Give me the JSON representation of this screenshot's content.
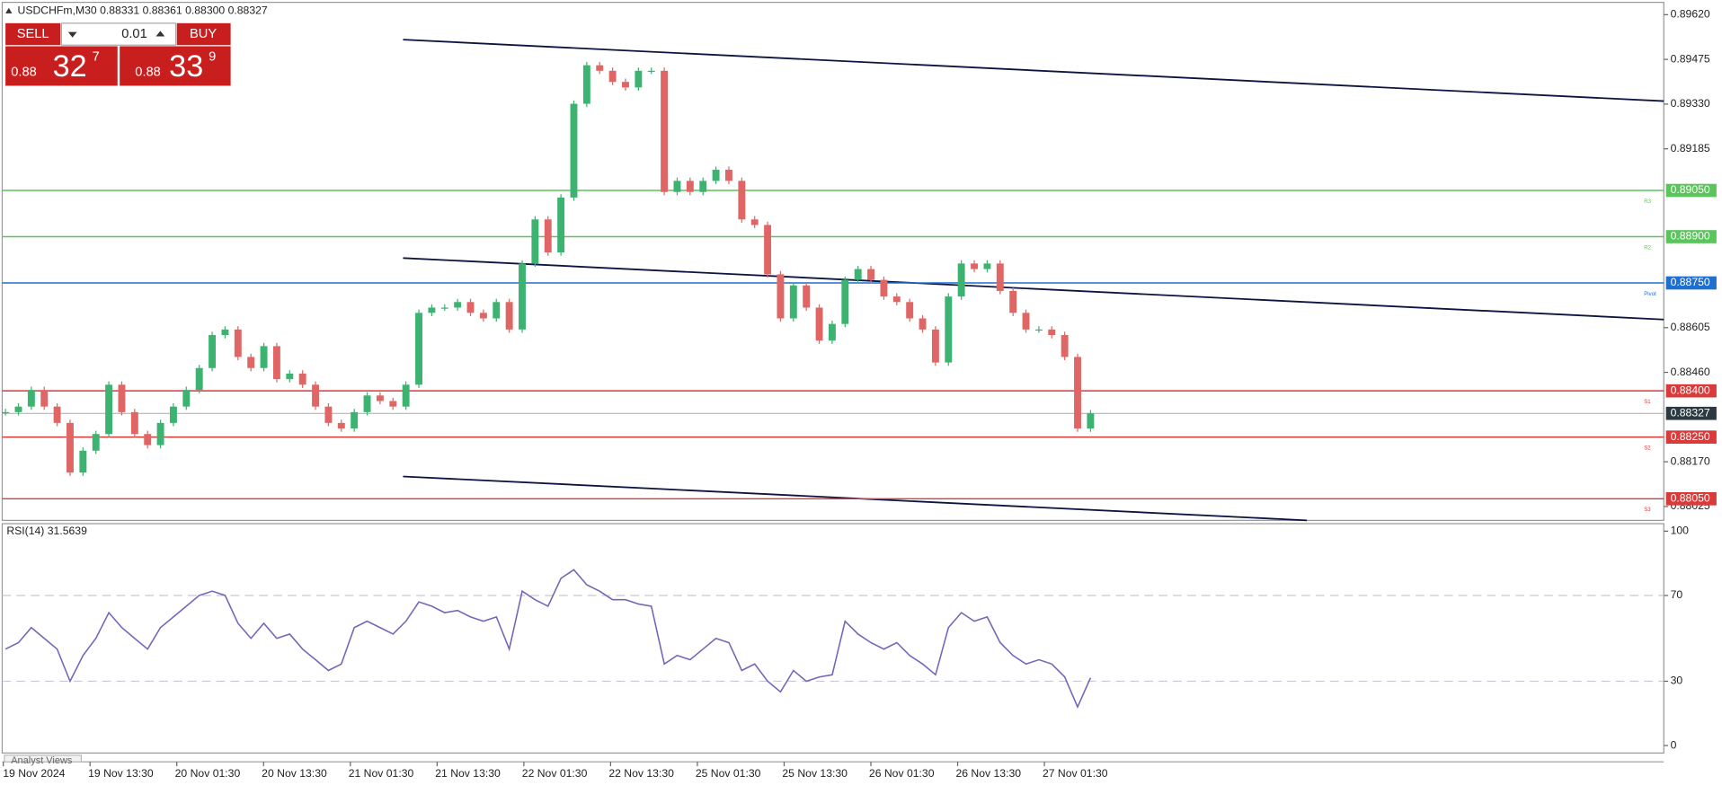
{
  "toolbar": {
    "symbol_line": "USDCHFm,M30  0.88331 0.88361 0.88300 0.88327",
    "sell": "SELL",
    "buy": "BUY",
    "lot": "0.01",
    "sell_price": {
      "big": "0.88",
      "pips": "32",
      "frac": "7"
    },
    "buy_price": {
      "big": "0.88",
      "pips": "33",
      "frac": "9"
    }
  },
  "chart_data": {
    "type": "candlestick",
    "close": [
      0.88331,
      0.88349,
      0.88403,
      0.88349,
      0.88296,
      0.88135,
      0.88206,
      0.8826,
      0.8842,
      0.88331,
      0.8826,
      0.88224,
      0.88296,
      0.88349,
      0.88403,
      0.88474,
      0.88581,
      0.88599,
      0.8851,
      0.88474,
      0.88545,
      0.88438,
      0.88456,
      0.8842,
      0.88349,
      0.88296,
      0.88278,
      0.88331,
      0.88385,
      0.88367,
      0.88349,
      0.8842,
      0.88653,
      0.8867,
      0.8867,
      0.88688,
      0.88653,
      0.88635,
      0.88688,
      0.88599,
      0.88813,
      0.88956,
      0.88849,
      0.89027,
      0.89331,
      0.89456,
      0.89438,
      0.89402,
      0.89384,
      0.89438,
      0.89438,
      0.89045,
      0.89081,
      0.89045,
      0.89081,
      0.89117,
      0.89081,
      0.88956,
      0.88938,
      0.88778,
      0.88635,
      0.88742,
      0.8867,
      0.88563,
      0.88617,
      0.8876,
      0.88795,
      0.8876,
      0.88706,
      0.88688,
      0.88635,
      0.88599,
      0.88492,
      0.88706,
      0.88813,
      0.88795,
      0.88813,
      0.88724,
      0.88653,
      0.88599,
      0.88599,
      0.88581,
      0.8851,
      0.88278,
      0.88327
    ],
    "up_color": "#3cb371",
    "down_color": "#e06666",
    "ylim": [
      0.8798,
      0.8966
    ],
    "yticks": [
      {
        "value": 0.8962,
        "label": "0.89620"
      },
      {
        "value": 0.89475,
        "label": "0.89475"
      },
      {
        "value": 0.8933,
        "label": "0.89330"
      },
      {
        "value": 0.89185,
        "label": "0.89185"
      },
      {
        "value": 0.88605,
        "label": "0.88605"
      },
      {
        "value": 0.8846,
        "label": "0.88460"
      },
      {
        "value": 0.8817,
        "label": "0.88170"
      },
      {
        "value": 0.88025,
        "label": "0.88025"
      }
    ],
    "levels": [
      {
        "name": "R3",
        "value": 0.8905,
        "label": "0.89050",
        "color": "#5cc45c"
      },
      {
        "name": "R2",
        "value": 0.889,
        "label": "0.88900",
        "color": "#5cc45c"
      },
      {
        "name": "Pivot",
        "value": 0.8875,
        "label": "0.88750",
        "color": "#1e6fd0"
      },
      {
        "name": "S1",
        "value": 0.884,
        "label": "0.88400",
        "color": "#d93a3a"
      },
      {
        "name": "S2",
        "value": 0.8825,
        "label": "0.88250",
        "color": "#d93a3a"
      },
      {
        "name": "S3",
        "value": 0.8805,
        "label": "0.88050",
        "color": "#d93a3a"
      }
    ],
    "current": {
      "value": 0.88327,
      "label": "0.88327",
      "color": "#2b3a40"
    },
    "time_labels": [
      "19 Nov 2024",
      "19 Nov 13:30",
      "20 Nov 01:30",
      "20 Nov 13:30",
      "21 Nov 01:30",
      "21 Nov 13:30",
      "22 Nov 01:30",
      "22 Nov 13:30",
      "25 Nov 01:30",
      "25 Nov 13:30",
      "26 Nov 01:30",
      "26 Nov 13:30",
      "27 Nov 01:30"
    ],
    "rsi": {
      "label": "RSI(14) 31.5639",
      "color": "#7467b8",
      "values": [
        45,
        48,
        55,
        50,
        45,
        30,
        42,
        50,
        62,
        55,
        50,
        45,
        55,
        60,
        65,
        70,
        72,
        70,
        57,
        50,
        57,
        50,
        52,
        45,
        40,
        35,
        38,
        55,
        58,
        55,
        52,
        58,
        67,
        65,
        62,
        63,
        60,
        58,
        60,
        45,
        72,
        68,
        65,
        78,
        82,
        75,
        72,
        68,
        68,
        66,
        65,
        38,
        42,
        40,
        45,
        50,
        48,
        35,
        38,
        30,
        25,
        35,
        30,
        32,
        33,
        58,
        52,
        48,
        45,
        48,
        42,
        38,
        33,
        55,
        62,
        58,
        60,
        48,
        42,
        38,
        40,
        38,
        32,
        18,
        31.5639
      ],
      "ylim": [
        -3.5,
        103.5
      ],
      "yticks": [
        0,
        30,
        70,
        100
      ],
      "levels": [
        30,
        70
      ]
    }
  },
  "footer": {
    "tab": "Analyst Views"
  }
}
